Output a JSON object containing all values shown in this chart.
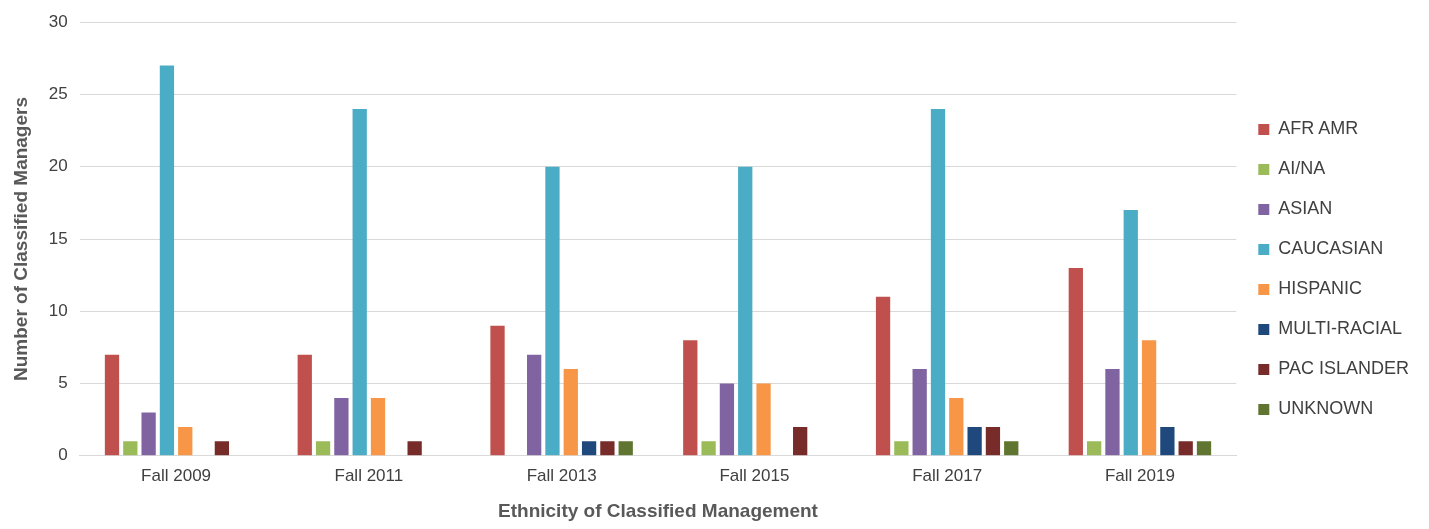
{
  "chart_data": {
    "type": "bar",
    "xlabel": "Ethnicity of Classified Management",
    "ylabel": "Number of Classified Managers",
    "categories": [
      "Fall 2009",
      "Fall 2011",
      "Fall 2013",
      "Fall 2015",
      "Fall 2017",
      "Fall 2019"
    ],
    "series": [
      {
        "name": "AFR AMR",
        "color": "#c0504d",
        "values": [
          7,
          7,
          9,
          8,
          11,
          13
        ]
      },
      {
        "name": "AI/NA",
        "color": "#9bbb59",
        "values": [
          1,
          1,
          0,
          1,
          1,
          1
        ]
      },
      {
        "name": "ASIAN",
        "color": "#8064a2",
        "values": [
          3,
          4,
          7,
          5,
          6,
          6
        ]
      },
      {
        "name": "CAUCASIAN",
        "color": "#4bacc6",
        "values": [
          27,
          24,
          20,
          20,
          24,
          17
        ]
      },
      {
        "name": "HISPANIC",
        "color": "#f79646",
        "values": [
          2,
          4,
          6,
          5,
          4,
          8
        ]
      },
      {
        "name": "MULTI-RACIAL",
        "color": "#1f497d",
        "values": [
          0,
          0,
          1,
          0,
          2,
          2
        ]
      },
      {
        "name": "PAC ISLANDER",
        "color": "#772c2a",
        "values": [
          1,
          1,
          1,
          2,
          2,
          1
        ]
      },
      {
        "name": "UNKNOWN",
        "color": "#5f7530",
        "values": [
          0,
          0,
          1,
          0,
          1,
          1
        ]
      }
    ],
    "ylim": [
      0,
      30
    ],
    "yticks": [
      0,
      5,
      10,
      15,
      20,
      25,
      30
    ],
    "grid": "y",
    "legend": "right"
  }
}
